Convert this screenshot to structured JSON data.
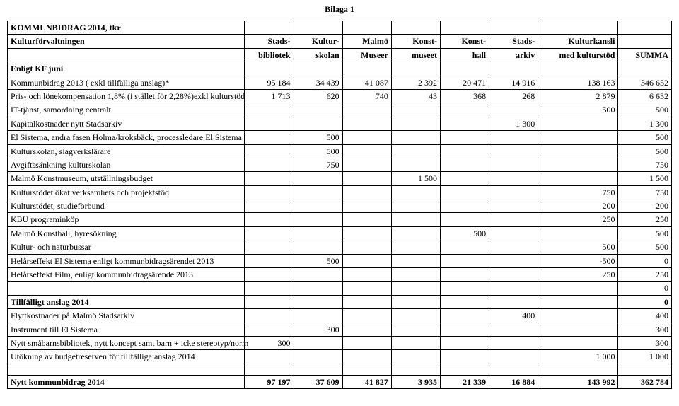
{
  "header_label": "Bilaga 1",
  "title": "KOMMUNBIDRAG 2014, tkr",
  "col_headers_row1": {
    "c0": "Kulturförvaltningen",
    "c1": "Stads-",
    "c2": "Kultur-",
    "c3": "Malmö",
    "c4": "Konst-",
    "c5": "Konst-",
    "c6": "Stads-",
    "c7": "Kulturkansli",
    "c8": ""
  },
  "col_headers_row2": {
    "c0": "",
    "c1": "bibliotek",
    "c2": "skolan",
    "c3": "Museer",
    "c4": "museet",
    "c5": "hall",
    "c6": "arkiv",
    "c7": "med kulturstöd",
    "c8": "SUMMA"
  },
  "section1_label": "Enligt KF juni",
  "rows": [
    {
      "label": "Kommunbidrag 2013 ( exkl tillfälliga anslag)*",
      "c1": "95 184",
      "c2": "34 439",
      "c3": "41 087",
      "c4": "2 392",
      "c5": "20 471",
      "c6": "14 916",
      "c7": "138 163",
      "c8": "346 652"
    },
    {
      "label": "Pris- och lönekompensation 1,8% (i stället för 2,28%)exkl kulturstöd",
      "c1": "1 713",
      "c2": "620",
      "c3": "740",
      "c4": "43",
      "c5": "368",
      "c6": "268",
      "c7": "2 879",
      "c8": "6 632"
    },
    {
      "label": "IT-tjänst, samordning centralt",
      "c1": "",
      "c2": "",
      "c3": "",
      "c4": "",
      "c5": "",
      "c6": "",
      "c7": "500",
      "c8": "500"
    },
    {
      "label": "Kapitalkostnader nytt Stadsarkiv",
      "c1": "",
      "c2": "",
      "c3": "",
      "c4": "",
      "c5": "",
      "c6": "1 300",
      "c7": "",
      "c8": "1 300"
    },
    {
      "label": "El Sistema, andra fasen Holma/kroksbäck, processledare El Sistema",
      "c1": "",
      "c2": "500",
      "c3": "",
      "c4": "",
      "c5": "",
      "c6": "",
      "c7": "",
      "c8": "500"
    },
    {
      "label": "Kulturskolan, slagverkslärare",
      "c1": "",
      "c2": "500",
      "c3": "",
      "c4": "",
      "c5": "",
      "c6": "",
      "c7": "",
      "c8": "500"
    },
    {
      "label": "Avgiftssänkning kulturskolan",
      "c1": "",
      "c2": "750",
      "c3": "",
      "c4": "",
      "c5": "",
      "c6": "",
      "c7": "",
      "c8": "750"
    },
    {
      "label": "Malmö Konstmuseum, utställningsbudget",
      "c1": "",
      "c2": "",
      "c3": "",
      "c4": "1 500",
      "c5": "",
      "c6": "",
      "c7": "",
      "c8": "1 500"
    },
    {
      "label": "Kulturstödet ökat verksamhets och projektstöd",
      "c1": "",
      "c2": "",
      "c3": "",
      "c4": "",
      "c5": "",
      "c6": "",
      "c7": "750",
      "c8": "750"
    },
    {
      "label": "Kulturstödet, studieförbund",
      "c1": "",
      "c2": "",
      "c3": "",
      "c4": "",
      "c5": "",
      "c6": "",
      "c7": "200",
      "c8": "200"
    },
    {
      "label": "KBU programinköp",
      "c1": "",
      "c2": "",
      "c3": "",
      "c4": "",
      "c5": "",
      "c6": "",
      "c7": "250",
      "c8": "250"
    },
    {
      "label": "Malmö Konsthall, hyresökning",
      "c1": "",
      "c2": "",
      "c3": "",
      "c4": "",
      "c5": "500",
      "c6": "",
      "c7": "",
      "c8": "500"
    },
    {
      "label": "Kultur- och naturbussar",
      "c1": "",
      "c2": "",
      "c3": "",
      "c4": "",
      "c5": "",
      "c6": "",
      "c7": "500",
      "c8": "500"
    },
    {
      "label": "Helårseffekt El Sistema enligt kommunbidragsärendet 2013",
      "c1": "",
      "c2": "500",
      "c3": "",
      "c4": "",
      "c5": "",
      "c6": "",
      "c7": "-500",
      "c8": "0"
    },
    {
      "label": "Helårseffekt Film, enligt kommunbidragsärende 2013",
      "c1": "",
      "c2": "",
      "c3": "",
      "c4": "",
      "c5": "",
      "c6": "",
      "c7": "250",
      "c8": "250"
    },
    {
      "label": "",
      "c1": "",
      "c2": "",
      "c3": "",
      "c4": "",
      "c5": "",
      "c6": "",
      "c7": "",
      "c8": "0"
    }
  ],
  "section2_label": "Tillfälligt anslag 2014",
  "section2_c8": "0",
  "rows2": [
    {
      "label": "Flyttkostnader på Malmö Stadsarkiv",
      "c1": "",
      "c2": "",
      "c3": "",
      "c4": "",
      "c5": "",
      "c6": "400",
      "c7": "",
      "c8": "400"
    },
    {
      "label": "Instrument till El Sistema",
      "c1": "",
      "c2": "300",
      "c3": "",
      "c4": "",
      "c5": "",
      "c6": "",
      "c7": "",
      "c8": "300"
    },
    {
      "label": "Nytt småbarnsbibliotek, nytt koncept samt barn + icke stereotyp/norm",
      "c1": "300",
      "c2": "",
      "c3": "",
      "c4": "",
      "c5": "",
      "c6": "",
      "c7": "",
      "c8": "300"
    },
    {
      "label": "Utökning av budgetreserven för tillfälliga anslag 2014",
      "c1": "",
      "c2": "",
      "c3": "",
      "c4": "",
      "c5": "",
      "c6": "",
      "c7": "1 000",
      "c8": "1 000"
    }
  ],
  "total": {
    "label": "Nytt kommunbidrag 2014",
    "c1": "97 197",
    "c2": "37 609",
    "c3": "41 827",
    "c4": "3 935",
    "c5": "21 339",
    "c6": "16 884",
    "c7": "143 992",
    "c8": "362 784"
  }
}
